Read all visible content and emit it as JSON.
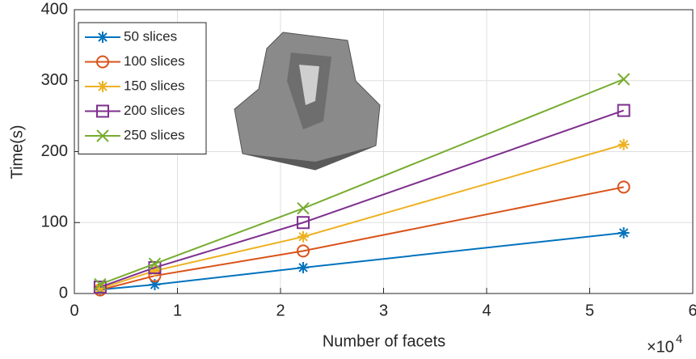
{
  "chart_data": {
    "type": "line",
    "xlabel": "Number of facets",
    "ylabel": "Time(s)",
    "x_scale": {
      "base": "×10",
      "exponent": "4"
    },
    "x": [
      0.25,
      0.78,
      2.22,
      5.33
    ],
    "series": [
      {
        "name": "50 slices",
        "color": "#0072BD",
        "marker": "star",
        "values": [
          5.5,
          12.5,
          36.5,
          85.5
        ]
      },
      {
        "name": "100 slices",
        "color": "#D95319",
        "marker": "circle",
        "values": [
          5,
          25,
          60,
          150
        ]
      },
      {
        "name": "150 slices",
        "color": "#EDB120",
        "marker": "star",
        "values": [
          7,
          32,
          80,
          210
        ]
      },
      {
        "name": "200 slices",
        "color": "#7E2F8E",
        "marker": "square",
        "values": [
          9,
          36.5,
          100,
          258
        ]
      },
      {
        "name": "250 slices",
        "color": "#77AC30",
        "marker": "cross",
        "values": [
          13,
          42,
          120,
          302
        ]
      }
    ],
    "xlim": [
      0,
      6
    ],
    "xticks": [
      0,
      1,
      2,
      3,
      4,
      5,
      6
    ],
    "ylim": [
      0,
      400
    ],
    "yticks": [
      0,
      100,
      200,
      300,
      400
    ],
    "grid": true,
    "legend_position": "upper-left"
  }
}
